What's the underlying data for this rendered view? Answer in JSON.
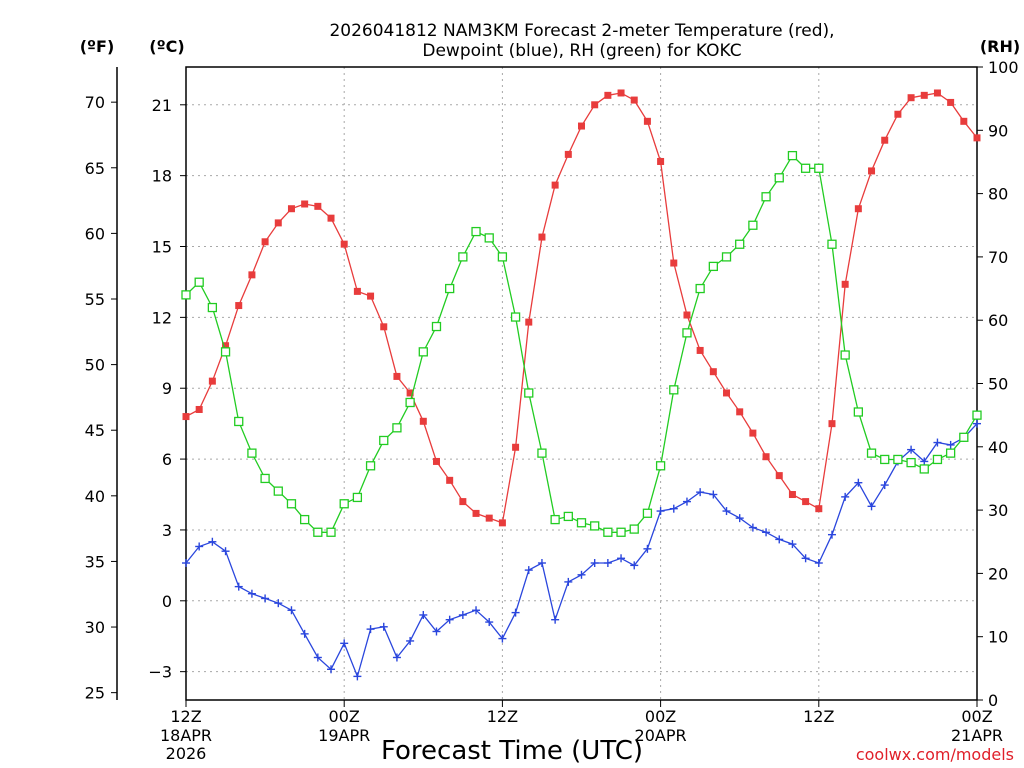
{
  "chart_data": {
    "type": "line",
    "title_line1": "2026041812 NAM3KM Forecast 2-meter Temperature (red),",
    "title_line2": "Dewpoint (blue), RH (green) for KOKC",
    "left_outer_unit": "(ºF)",
    "left_inner_unit": "(ºC)",
    "right_unit": "(RH)",
    "xlabel": "Forecast Time (UTC)",
    "credit": "coolwx.com/models",
    "xlim": [
      0,
      60
    ],
    "celsius_range": [
      -4.2,
      22.6
    ],
    "rh_range": [
      0,
      100
    ],
    "celsius_ticks": [
      "21",
      "18",
      "15",
      "12",
      "9",
      "6",
      "3",
      "0",
      "−3"
    ],
    "fahrenheit_ticks": [
      "70",
      "65",
      "60",
      "55",
      "50",
      "45",
      "40",
      "35",
      "30",
      "25"
    ],
    "rh_ticks": [
      "100",
      "90",
      "80",
      "70",
      "60",
      "50",
      "40",
      "30",
      "20",
      "10",
      "0"
    ],
    "x_ticks": [
      {
        "hour": 0,
        "line1": "12Z",
        "line2": "18APR",
        "line3": "2026"
      },
      {
        "hour": 12,
        "line1": "00Z",
        "line2": "19APR",
        "line3": ""
      },
      {
        "hour": 24,
        "line1": "12Z",
        "line2": "",
        "line3": ""
      },
      {
        "hour": 36,
        "line1": "00Z",
        "line2": "20APR",
        "line3": ""
      },
      {
        "hour": 48,
        "line1": "12Z",
        "line2": "",
        "line3": ""
      },
      {
        "hour": 60,
        "line1": "00Z",
        "line2": "21APR",
        "line3": ""
      }
    ],
    "series": [
      {
        "name": "2-meter Temperature",
        "unit": "C",
        "axis": "celsius",
        "color": "#e83c3c",
        "marker": "filled-square",
        "x": [
          0,
          1,
          2,
          3,
          4,
          5,
          6,
          7,
          8,
          9,
          10,
          11,
          12,
          13,
          14,
          15,
          16,
          17,
          18,
          19,
          20,
          21,
          22,
          23,
          24,
          25,
          26,
          27,
          28,
          29,
          30,
          31,
          32,
          33,
          34,
          35,
          36,
          37,
          38,
          39,
          40,
          41,
          42,
          43,
          44,
          45,
          46,
          47,
          48,
          49,
          50,
          51,
          52,
          53,
          54,
          55,
          56,
          57,
          58,
          59,
          60
        ],
        "values": [
          7.8,
          8.1,
          9.3,
          10.8,
          12.5,
          13.8,
          15.2,
          16.0,
          16.6,
          16.8,
          16.7,
          16.2,
          15.1,
          13.1,
          12.9,
          11.6,
          9.5,
          8.8,
          7.6,
          5.9,
          5.1,
          4.2,
          3.7,
          3.5,
          3.3,
          6.5,
          11.8,
          15.4,
          17.6,
          18.9,
          20.1,
          21.0,
          21.4,
          21.5,
          21.2,
          20.3,
          18.6,
          14.3,
          12.1,
          10.6,
          9.7,
          8.8,
          8.0,
          7.1,
          6.1,
          5.3,
          4.5,
          4.2,
          3.9,
          7.5,
          13.4,
          16.6,
          18.2,
          19.5,
          20.6,
          21.3,
          21.4,
          21.5,
          21.1,
          20.3,
          19.6
        ]
      },
      {
        "name": "Dewpoint",
        "unit": "C",
        "axis": "celsius",
        "color": "#2a46dd",
        "marker": "plus",
        "x": [
          0,
          1,
          2,
          3,
          4,
          5,
          6,
          7,
          8,
          9,
          10,
          11,
          12,
          13,
          14,
          15,
          16,
          17,
          18,
          19,
          20,
          21,
          22,
          23,
          24,
          25,
          26,
          27,
          28,
          29,
          30,
          31,
          32,
          33,
          34,
          35,
          36,
          37,
          38,
          39,
          40,
          41,
          42,
          43,
          44,
          45,
          46,
          47,
          48,
          49,
          50,
          51,
          52,
          53,
          54,
          55,
          56,
          57,
          58,
          59,
          60
        ],
        "values": [
          1.6,
          2.3,
          2.5,
          2.1,
          0.6,
          0.3,
          0.1,
          -0.1,
          -0.4,
          -1.4,
          -2.4,
          -2.9,
          -1.8,
          -3.2,
          -1.2,
          -1.1,
          -2.4,
          -1.7,
          -0.6,
          -1.3,
          -0.8,
          -0.6,
          -0.4,
          -0.9,
          -1.6,
          -0.5,
          1.3,
          1.6,
          -0.8,
          0.8,
          1.1,
          1.6,
          1.6,
          1.8,
          1.5,
          2.2,
          3.8,
          3.9,
          4.2,
          4.6,
          4.5,
          3.8,
          3.5,
          3.1,
          2.9,
          2.6,
          2.4,
          1.8,
          1.6,
          2.8,
          4.4,
          5.0,
          4.0,
          4.9,
          5.9,
          6.4,
          5.9,
          6.7,
          6.6,
          6.9,
          7.5
        ]
      },
      {
        "name": "RH",
        "unit": "%",
        "axis": "rh",
        "color": "#22cc22",
        "marker": "open-square",
        "x": [
          0,
          1,
          2,
          3,
          4,
          5,
          6,
          7,
          8,
          9,
          10,
          11,
          12,
          13,
          14,
          15,
          16,
          17,
          18,
          19,
          20,
          21,
          22,
          23,
          24,
          25,
          26,
          27,
          28,
          29,
          30,
          31,
          32,
          33,
          34,
          35,
          36,
          37,
          38,
          39,
          40,
          41,
          42,
          43,
          44,
          45,
          46,
          47,
          48,
          49,
          50,
          51,
          52,
          53,
          54,
          55,
          56,
          57,
          58,
          59,
          60
        ],
        "values": [
          64,
          66,
          62,
          55,
          44,
          39,
          35,
          33,
          31,
          28.5,
          26.5,
          26.5,
          31,
          32,
          37,
          41,
          43,
          47,
          55,
          59,
          65,
          70,
          74,
          73,
          70,
          60.5,
          48.5,
          39,
          28.5,
          29,
          28,
          27.5,
          26.5,
          26.5,
          27,
          29.5,
          37,
          49,
          58,
          65,
          68.5,
          70,
          72,
          75,
          79.5,
          82.5,
          86,
          84,
          84,
          72,
          54.5,
          45.5,
          39,
          38,
          38,
          37.5,
          36.5,
          38,
          39,
          41.5,
          45
        ]
      }
    ]
  }
}
